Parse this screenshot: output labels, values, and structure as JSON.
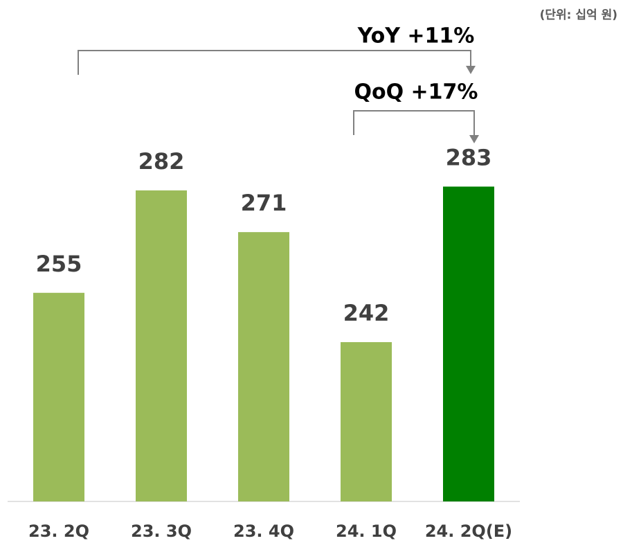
{
  "chart_data": {
    "type": "bar",
    "subtitle": "(단위: 십억 원)",
    "categories": [
      "23. 2Q",
      "23. 3Q",
      "23. 4Q",
      "24. 1Q",
      "24. 2Q(E)"
    ],
    "values": [
      255,
      282,
      271,
      242,
      283
    ],
    "colors": [
      "#9bbb59",
      "#9bbb59",
      "#9bbb59",
      "#9bbb59",
      "#008000"
    ],
    "ylim": [
      200,
      330
    ],
    "annotations": [
      "YoY +11%",
      "QoQ +17%"
    ]
  }
}
